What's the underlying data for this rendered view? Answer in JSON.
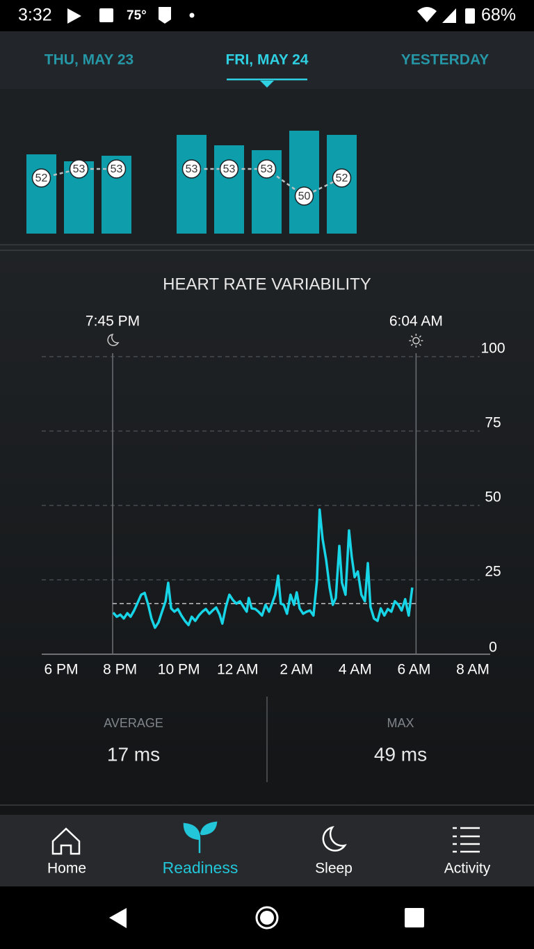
{
  "status_bar": {
    "time": "3:32",
    "temperature": "75°",
    "battery": "68%"
  },
  "tabs": {
    "items": [
      "THU, MAY 23",
      "FRI, MAY 24",
      "YESTERDAY"
    ],
    "active": 1
  },
  "readiness": {
    "ylim": [
      0,
      160
    ],
    "groups": [
      {
        "bars": [
          114,
          104,
          112
        ],
        "labels": [
          52,
          53,
          53
        ]
      },
      {
        "bars": [
          142,
          127,
          120,
          148,
          142
        ],
        "labels": [
          53,
          53,
          53,
          50,
          52
        ]
      }
    ]
  },
  "hrv": {
    "type": "line",
    "title": "HEART RATE VARIABILITY",
    "xlim": [
      0,
      14
    ],
    "ylim": [
      0,
      100
    ],
    "xticks": [
      {
        "value": 0,
        "label": "6 PM"
      },
      {
        "value": 2,
        "label": "8 PM"
      },
      {
        "value": 4,
        "label": "10 PM"
      },
      {
        "value": 6,
        "label": "12 AM"
      },
      {
        "value": 8,
        "label": "2 AM"
      },
      {
        "value": 10,
        "label": "4 AM"
      },
      {
        "value": 12,
        "label": "6 AM"
      },
      {
        "value": 14,
        "label": "8 AM"
      }
    ],
    "yticks": [
      0,
      25,
      50,
      75,
      100
    ],
    "grid": true,
    "color": "#17d5e6",
    "markers": [
      {
        "value": 1.75,
        "label": "7:45 PM",
        "icon": "moon"
      },
      {
        "value": 12.07,
        "label": "6:04 AM",
        "icon": "sun"
      }
    ],
    "x": [
      1.77,
      1.89,
      2.01,
      2.13,
      2.25,
      2.36,
      2.48,
      2.6,
      2.72,
      2.84,
      2.96,
      3.07,
      3.19,
      3.31,
      3.43,
      3.55,
      3.64,
      3.74,
      3.85,
      3.97,
      4.09,
      4.21,
      4.33,
      4.44,
      4.56,
      4.68,
      4.8,
      4.92,
      5.04,
      5.15,
      5.27,
      5.39,
      5.48,
      5.6,
      5.72,
      5.84,
      5.96,
      6.08,
      6.19,
      6.31,
      6.38,
      6.48,
      6.6,
      6.71,
      6.83,
      6.95,
      7.07,
      7.19,
      7.28,
      7.38,
      7.47,
      7.57,
      7.68,
      7.8,
      7.92,
      8.01,
      8.11,
      8.23,
      8.35,
      8.46,
      8.58,
      8.7,
      8.79,
      8.89,
      9.01,
      9.13,
      9.24,
      9.34,
      9.46,
      9.55,
      9.67,
      9.79,
      9.88,
      9.98,
      10.09,
      10.21,
      10.33,
      10.43,
      10.52,
      10.64,
      10.76,
      10.87,
      10.99,
      11.11,
      11.23,
      11.35,
      11.47,
      11.58,
      11.7,
      11.82,
      11.94
    ],
    "values": [
      14,
      12.6,
      13.3,
      12,
      13.8,
      12.6,
      14.7,
      17.3,
      20,
      20.6,
      16.6,
      12,
      8.9,
      10.7,
      14.3,
      17.8,
      24,
      15.4,
      14.3,
      15.2,
      13,
      11.2,
      9.8,
      12.6,
      11.2,
      13,
      14.3,
      15.2,
      13.6,
      14.7,
      15.7,
      13.3,
      10.3,
      15.9,
      20,
      18.2,
      17,
      17.8,
      16.1,
      14.3,
      18.9,
      15.4,
      15.2,
      14.3,
      13,
      16.6,
      14.3,
      17.5,
      20,
      26.4,
      17,
      16.6,
      13.6,
      20,
      16.6,
      20.8,
      15.4,
      13.6,
      14.3,
      14.7,
      13,
      24.8,
      48.6,
      38.8,
      31.8,
      22.4,
      16.6,
      18.9,
      36.4,
      24,
      20,
      41.6,
      32.9,
      25.9,
      27.8,
      20,
      17.8,
      30.6,
      15.9,
      12,
      11.2,
      15.4,
      13,
      15.2,
      14.3,
      17.8,
      16.6,
      14.7,
      18.5,
      13,
      22.4
    ],
    "stats": [
      {
        "label": "AVERAGE",
        "value": {
          "value": 17,
          "label": "17 ms"
        }
      },
      {
        "label": "MAX",
        "value": {
          "value": 49,
          "label": "49 ms"
        }
      }
    ]
  },
  "nav": {
    "items": [
      "Home",
      "Readiness",
      "Sleep",
      "Activity"
    ],
    "active": 1
  }
}
